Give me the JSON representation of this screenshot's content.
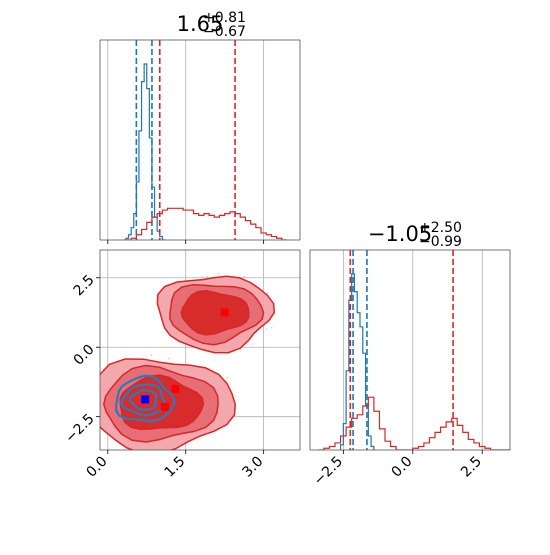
{
  "chart_data": [
    {
      "panel": "top-left",
      "type": "histogram",
      "title_value": "1.65",
      "title_sup": "+0.81",
      "title_sub": "−0.67",
      "xlim": [
        -0.15,
        3.7
      ],
      "xticks": [
        0.0,
        1.5,
        3.0
      ],
      "grid": true,
      "series": [
        {
          "color": "#1f77b4",
          "bin_start": 0.3,
          "bin_width": 0.05,
          "heights": [
            0.0,
            0.01,
            0.03,
            0.07,
            0.15,
            0.33,
            0.62,
            0.9,
            1.0,
            0.86,
            0.58,
            0.3,
            0.13,
            0.05,
            0.02,
            0.0
          ],
          "vlines": [
            0.55,
            0.85
          ]
        },
        {
          "color": "#d62728",
          "bin_start": 0.35,
          "bin_width": 0.1,
          "heights": [
            0.0,
            0.01,
            0.03,
            0.06,
            0.1,
            0.13,
            0.15,
            0.17,
            0.18,
            0.18,
            0.18,
            0.17,
            0.17,
            0.15,
            0.14,
            0.15,
            0.14,
            0.13,
            0.14,
            0.15,
            0.16,
            0.15,
            0.13,
            0.11,
            0.09,
            0.07,
            0.04,
            0.03,
            0.02,
            0.01,
            0.0
          ],
          "vlines": [
            1.0,
            2.45
          ]
        }
      ]
    },
    {
      "panel": "bottom-left",
      "type": "contour",
      "xlim": [
        -0.15,
        3.7
      ],
      "ylim": [
        -3.7,
        3.5
      ],
      "xticks": [
        0.0,
        1.5,
        3.0
      ],
      "yticks": [
        -2.5,
        0.0,
        2.5
      ],
      "grid": true,
      "red_blobs": [
        {
          "cx": 2.05,
          "cy": 1.25,
          "r": [
            1.1,
            0.9,
            0.65
          ],
          "ry": [
            1.35,
            1.05,
            0.75
          ]
        },
        {
          "cx": 1.0,
          "cy": -2.05,
          "r": [
            1.4,
            1.1,
            0.8
          ],
          "ry": [
            1.65,
            1.3,
            0.95
          ]
        }
      ],
      "blue_blob": {
        "cx": 0.7,
        "cy": -1.9,
        "r": [
          0.55,
          0.4,
          0.25
        ],
        "ry": [
          0.8,
          0.55,
          0.35
        ]
      },
      "markers": [
        {
          "x": 2.25,
          "y": 1.25,
          "color": "#ff0000"
        },
        {
          "x": 1.3,
          "y": -1.5,
          "color": "#ff0000"
        },
        {
          "x": 1.1,
          "y": -2.15,
          "color": "#ff0000"
        },
        {
          "x": 0.72,
          "y": -1.88,
          "color": "#0000ff"
        }
      ]
    },
    {
      "panel": "bottom-right",
      "type": "histogram",
      "title_value": "−1.05",
      "title_sup": "+2.50",
      "title_sub": "−0.99",
      "xlim": [
        -3.7,
        3.5
      ],
      "xticks": [
        -2.5,
        0.0,
        2.5
      ],
      "grid": true,
      "series": [
        {
          "color": "#1f77b4",
          "bin_start": -2.6,
          "bin_width": 0.1,
          "heights": [
            0.03,
            0.15,
            0.45,
            0.85,
            1.0,
            0.9,
            0.78,
            0.7,
            0.55,
            0.25,
            0.08,
            0.02
          ],
          "vlines": [
            -2.15,
            -1.65
          ]
        },
        {
          "color": "#d62728",
          "bin_start": -3.4,
          "bin_width": 0.2,
          "heights": [
            0.0,
            0.01,
            0.02,
            0.04,
            0.08,
            0.13,
            0.18,
            0.2,
            0.25,
            0.3,
            0.22,
            0.12,
            0.05,
            0.02,
            0.0,
            0.0,
            0.0,
            0.01,
            0.02,
            0.04,
            0.07,
            0.1,
            0.13,
            0.16,
            0.18,
            0.14,
            0.1,
            0.06,
            0.04,
            0.02,
            0.01,
            0.0,
            0.0,
            0.0,
            0.0
          ],
          "vlines": [
            -2.25,
            1.45
          ]
        }
      ]
    }
  ]
}
